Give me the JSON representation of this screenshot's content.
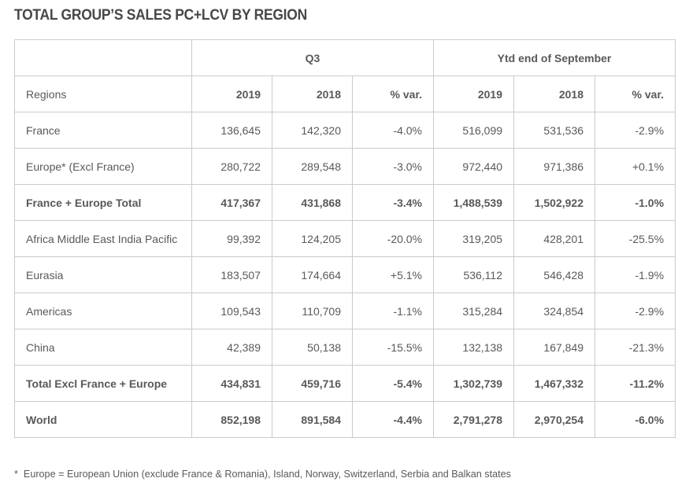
{
  "page_title": "TOTAL GROUP’S SALES PC+LCV BY REGION",
  "table": {
    "group_headers": [
      {
        "label": "Q3"
      },
      {
        "label": "Ytd end of September"
      }
    ],
    "column_headers": [
      "Regions",
      "2019",
      "2018",
      "% var.",
      "2019",
      "2018",
      "% var."
    ],
    "rows": [
      {
        "region": "France",
        "bold": false,
        "values": [
          "136,645",
          "142,320",
          "-4.0%",
          "516,099",
          "531,536",
          "-2.9%"
        ]
      },
      {
        "region": "Europe* (Excl France)",
        "bold": false,
        "values": [
          "280,722",
          "289,548",
          "-3.0%",
          "972,440",
          "971,386",
          "+0.1%"
        ]
      },
      {
        "region": "France + Europe Total",
        "bold": true,
        "values": [
          "417,367",
          "431,868",
          "-3.4%",
          "1,488,539",
          "1,502,922",
          "-1.0%"
        ]
      },
      {
        "region": "Africa Middle East India Pacific",
        "bold": false,
        "values": [
          "99,392",
          "124,205",
          "-20.0%",
          "319,205",
          "428,201",
          "-25.5%"
        ]
      },
      {
        "region": "Eurasia",
        "bold": false,
        "values": [
          "183,507",
          "174,664",
          "+5.1%",
          "536,112",
          "546,428",
          "-1.9%"
        ]
      },
      {
        "region": "Americas",
        "bold": false,
        "values": [
          "109,543",
          "110,709",
          "-1.1%",
          "315,284",
          "324,854",
          "-2.9%"
        ]
      },
      {
        "region": "China",
        "bold": false,
        "values": [
          "42,389",
          "50,138",
          "-15.5%",
          "132,138",
          "167,849",
          "-21.3%"
        ]
      },
      {
        "region": "Total Excl France + Europe",
        "bold": true,
        "values": [
          "434,831",
          "459,716",
          "-5.4%",
          "1,302,739",
          "1,467,332",
          "-11.2%"
        ]
      },
      {
        "region": "World",
        "bold": true,
        "values": [
          "852,198",
          "891,584",
          "-4.4%",
          "2,791,278",
          "2,970,254",
          "-6.0%"
        ]
      }
    ]
  },
  "footnote": "*  Europe = European Union (exclude France & Romania), Island, Norway, Switzerland, Serbia and Balkan states",
  "colors": {
    "title_text": "#474749",
    "body_text": "#58595b",
    "border": "#cbcbcb",
    "background": "#ffffff"
  }
}
